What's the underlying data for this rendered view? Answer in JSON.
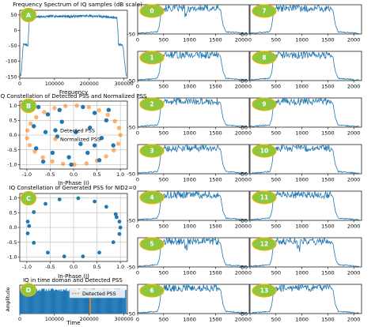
{
  "colors": {
    "series": "#1f77b4",
    "accent": "#ff7f0e",
    "badge_fill": "#8dc63f",
    "badge_stroke": "#f0b400",
    "badge_text": "#ffffff",
    "axis": "#000000",
    "grid": "#b0b0b0"
  },
  "chart_data": [
    {
      "id": "A",
      "type": "line",
      "title": "Frequency Spectrum of IQ samples (dB scale)",
      "xlabel": "Frequency",
      "ylabel": "",
      "badge": "A",
      "xlim": [
        0,
        310000
      ],
      "ylim": [
        -155,
        65
      ],
      "xticks": [
        0,
        100000,
        200000,
        300000
      ],
      "xtick_labels": [
        "0",
        "100000",
        "200000",
        "300000"
      ],
      "yticks": [
        50,
        0,
        -50,
        -100,
        -150
      ],
      "ytick_labels": [
        "50",
        "0",
        "-50",
        "-100",
        "-150"
      ],
      "grid": false,
      "series": [
        {
          "x": [
            0,
            4000,
            8000,
            9000,
            11000,
            24000,
            25500,
            28000,
            60000,
            100000,
            150000,
            200000,
            250000,
            280000,
            283000,
            284000,
            296000,
            298000,
            300000,
            306000,
            307500
          ],
          "y": [
            -150,
            -142,
            -80,
            -55,
            -45,
            -48,
            -5,
            40,
            44,
            46,
            45,
            47,
            44,
            40,
            -5,
            -45,
            -48,
            -55,
            -80,
            -142,
            -150
          ]
        }
      ]
    },
    {
      "id": "B",
      "type": "scatter",
      "title": "IQ Constellation of Detected PSS and Normalized PSS",
      "xlabel": "In-Phase (I)",
      "ylabel": "",
      "badge": "B",
      "xlim": [
        -1.15,
        1.15
      ],
      "ylim": [
        -1.15,
        1.15
      ],
      "xticks": [
        -1.0,
        -0.5,
        0.0,
        0.5,
        1.0
      ],
      "xtick_labels": [
        "-1.0",
        "-0.5",
        "0.0",
        "0.5",
        "1.0"
      ],
      "yticks": [
        1.0,
        0.5,
        0.0,
        -0.5,
        -1.0
      ],
      "ytick_labels": [
        "1.0",
        "0.5",
        "0.0",
        "-0.5",
        "-1.0"
      ],
      "grid": true,
      "legend": [
        "Detected PSS",
        "Normalized PSS"
      ],
      "legend_position": "center",
      "detected": [
        [
          -0.75,
          0.95
        ],
        [
          -0.55,
          0.7
        ],
        [
          -0.3,
          0.85
        ],
        [
          0.2,
          0.95
        ],
        [
          0.45,
          0.75
        ],
        [
          0.7,
          0.5
        ],
        [
          -0.85,
          0.3
        ],
        [
          -0.6,
          0.1
        ],
        [
          -0.35,
          -0.05
        ],
        [
          0.05,
          0.1
        ],
        [
          0.35,
          0.25
        ],
        [
          0.6,
          -0.1
        ],
        [
          0.85,
          -0.35
        ],
        [
          -0.8,
          -0.45
        ],
        [
          -0.45,
          -0.6
        ],
        [
          -0.1,
          -0.75
        ],
        [
          0.3,
          -0.6
        ],
        [
          0.55,
          -0.85
        ],
        [
          -0.25,
          0.45
        ],
        [
          0.15,
          -0.3
        ],
        [
          0.75,
          0.85
        ],
        [
          -0.05,
          -1.0
        ],
        [
          -0.65,
          -0.9
        ],
        [
          0.45,
          -0.35
        ]
      ],
      "normalized_angles_deg": [
        0,
        14,
        28,
        43,
        57,
        71,
        86,
        100,
        114,
        129,
        143,
        157,
        171,
        186,
        200,
        214,
        229,
        243,
        257,
        271,
        286,
        300,
        314,
        329,
        343
      ]
    },
    {
      "id": "C",
      "type": "scatter",
      "title": "IQ Constellation of Generated PSS for NID2=0",
      "xlabel": "In-Phase (I)",
      "ylabel": "",
      "badge": "C",
      "xlim": [
        -1.15,
        1.15
      ],
      "ylim": [
        -1.15,
        1.15
      ],
      "xticks": [
        -1.0,
        -0.5,
        0.0,
        0.5,
        1.0
      ],
      "xtick_labels": [
        "-1.0",
        "-0.5",
        "0.0",
        "0.5",
        "1.0"
      ],
      "yticks": [
        1.0,
        0.5,
        0.0,
        -0.5,
        -1.0
      ],
      "ytick_labels": [
        "1.0",
        "0.5",
        "0.0",
        "-0.5",
        "-1.0"
      ],
      "grid": true,
      "points": [
        [
          1.0,
          0.0
        ],
        [
          0.98,
          0.2
        ],
        [
          0.9,
          0.45
        ],
        [
          0.7,
          0.7
        ],
        [
          0.45,
          0.88
        ],
        [
          0.1,
          0.99
        ],
        [
          -0.3,
          0.95
        ],
        [
          -0.6,
          0.8
        ],
        [
          -0.85,
          0.52
        ],
        [
          -0.98,
          0.2
        ],
        [
          -0.98,
          -0.2
        ],
        [
          -0.85,
          -0.52
        ],
        [
          -0.55,
          -0.85
        ],
        [
          -0.2,
          -0.98
        ],
        [
          0.2,
          -0.98
        ],
        [
          0.55,
          -0.85
        ],
        [
          0.85,
          -0.5
        ],
        [
          0.98,
          -0.22
        ],
        [
          0.92,
          0.35
        ],
        [
          -0.95,
          0.05
        ]
      ]
    },
    {
      "id": "D",
      "type": "line",
      "title": "IQ in time doman and Detected PSS",
      "xlabel": "Time",
      "ylabel": "Amplitude",
      "badge": "D",
      "xlim": [
        0,
        310000
      ],
      "ylim": [
        0,
        1
      ],
      "xticks": [
        0,
        100000,
        200000,
        300000
      ],
      "xtick_labels": [
        "0",
        "100000",
        "200000",
        "300000"
      ],
      "yticks": [],
      "grid": false,
      "legend": [
        "Detected PSS"
      ],
      "legend_position": "top-right",
      "signal_level": 0.78,
      "detected_pss_at": 203000
    },
    {
      "id": "grid",
      "type": "line",
      "labels": [
        "0",
        "1",
        "2",
        "3",
        "4",
        "5",
        "6",
        "7",
        "8",
        "9",
        "10",
        "11",
        "12",
        "13"
      ],
      "xlim": [
        0,
        2150
      ],
      "ylim": [
        -50,
        55
      ],
      "xticks": [
        0,
        500,
        1000,
        1500,
        2000
      ],
      "xtick_labels": [
        "0",
        "500",
        "1000",
        "1500",
        "2000"
      ],
      "ytick_bottom_label": "-50",
      "shape": {
        "x": [
          0,
          380,
          420,
          440,
          460,
          500,
          1560,
          1600,
          1620,
          1650,
          1700,
          2100
        ],
        "y": [
          -48,
          -42,
          -20,
          10,
          35,
          42,
          42,
          35,
          10,
          -20,
          -42,
          -48
        ]
      }
    }
  ]
}
